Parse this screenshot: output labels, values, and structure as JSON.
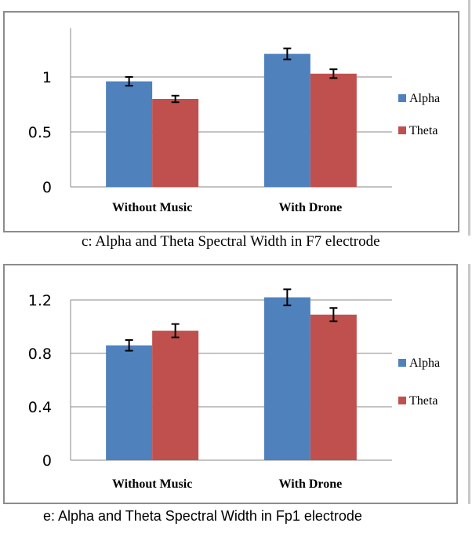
{
  "colors": {
    "alpha": "#4f81bd",
    "theta": "#c0504d",
    "grid": "#8a8a8a",
    "axis": "#8a8a8a"
  },
  "chart_data": [
    {
      "type": "bar",
      "panel": "c",
      "caption": "c: Alpha and Theta Spectral Width in F7 electrode",
      "categories": [
        "Without Music",
        "With Drone"
      ],
      "series": [
        {
          "name": "Alpha",
          "values": [
            0.96,
            1.21
          ],
          "errors": [
            0.04,
            0.05
          ]
        },
        {
          "name": "Theta",
          "values": [
            0.8,
            1.03
          ],
          "errors": [
            0.03,
            0.04
          ]
        }
      ],
      "yticks": [
        0,
        0.5,
        1
      ],
      "ylim": [
        0,
        1.5
      ],
      "grid": true,
      "legend": "right",
      "title": "",
      "xlabel": "",
      "ylabel": ""
    },
    {
      "type": "bar",
      "panel": "e",
      "caption": "e: Alpha and Theta Spectral Width in Fp1 electrode",
      "categories": [
        "Without Music",
        "With Drone"
      ],
      "series": [
        {
          "name": "Alpha",
          "values": [
            0.86,
            1.22
          ],
          "errors": [
            0.04,
            0.06
          ]
        },
        {
          "name": "Theta",
          "values": [
            0.97,
            1.09
          ],
          "errors": [
            0.05,
            0.05
          ]
        }
      ],
      "yticks": [
        0,
        0.4,
        0.8,
        1.2
      ],
      "ylim": [
        0,
        1.2
      ],
      "grid": true,
      "legend": "right",
      "title": "",
      "xlabel": "",
      "ylabel": ""
    }
  ]
}
